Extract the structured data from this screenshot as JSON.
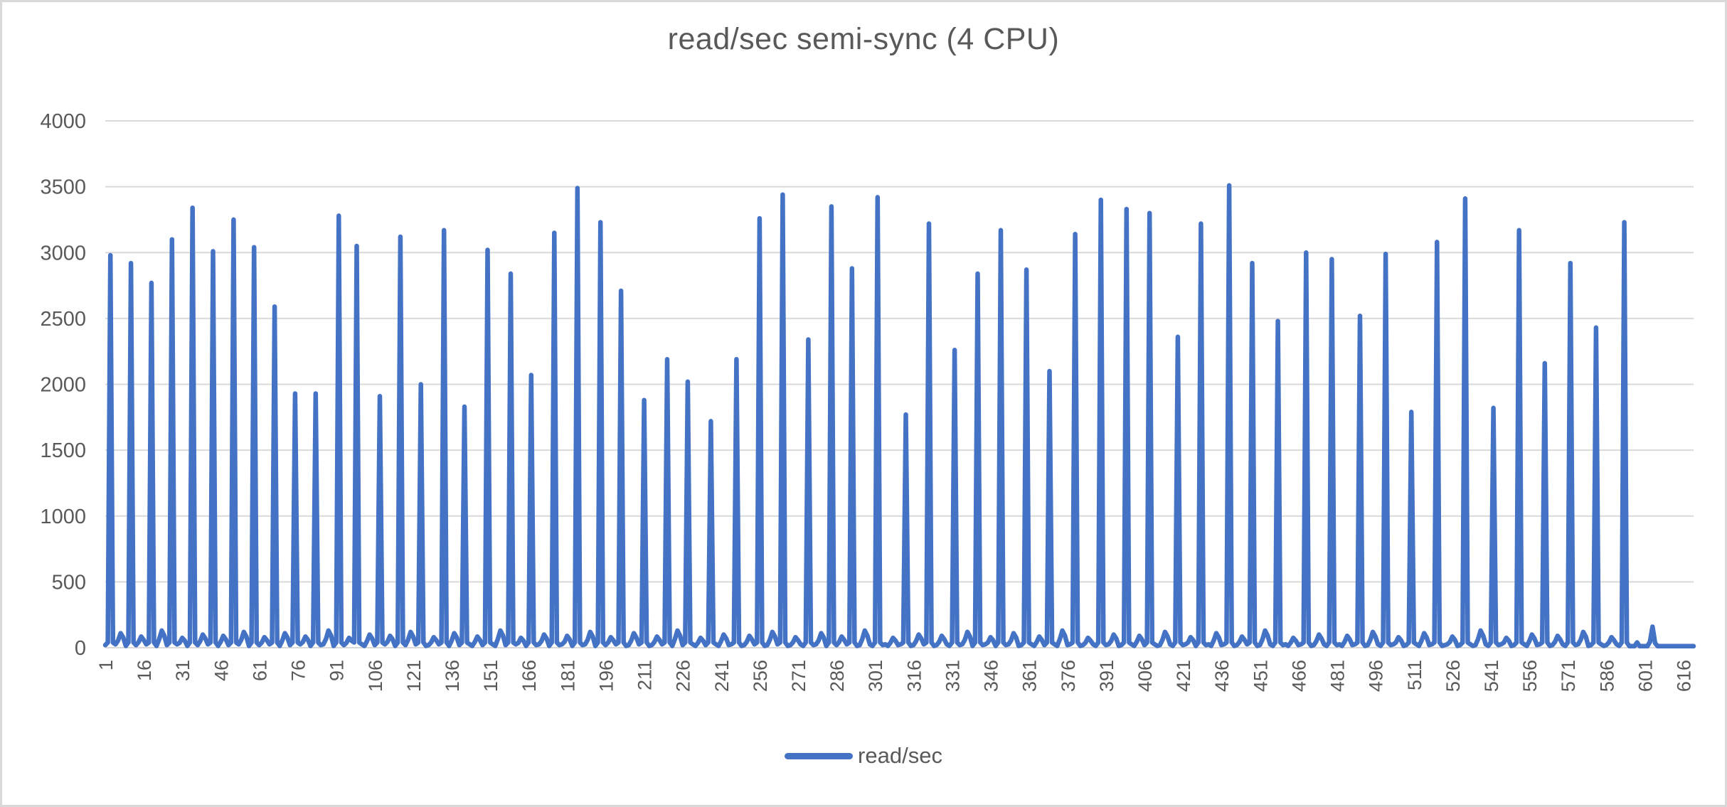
{
  "window": {
    "background": "#ffffff",
    "border_color": "#d9d9d9"
  },
  "chart_data": {
    "type": "line",
    "title": "read/sec semi-sync (4 CPU)",
    "legend": {
      "label": "read/sec",
      "position": "bottom-center"
    },
    "series": [
      {
        "name": "read/sec",
        "color": "#4472C4"
      }
    ],
    "series_color": "#4472C4",
    "grid_color": "#d9d9d9",
    "axis_text_color": "#595959",
    "title_color": "#595959",
    "grid": "horizontal-on",
    "ylim": [
      0,
      4000
    ],
    "ytick_step": 500,
    "yticks": [
      0,
      500,
      1000,
      1500,
      2000,
      2500,
      3000,
      3500,
      4000
    ],
    "xticks": [
      1,
      16,
      31,
      46,
      61,
      76,
      91,
      106,
      121,
      136,
      151,
      166,
      181,
      196,
      211,
      226,
      241,
      256,
      271,
      286,
      301,
      316,
      331,
      346,
      361,
      376,
      391,
      406,
      421,
      436,
      451,
      466,
      481,
      496,
      511,
      526,
      541,
      556,
      571,
      586,
      601,
      616
    ],
    "x_label_rotation_deg": -90,
    "n_points": 620,
    "baseline_value": 18,
    "peak_positions": [
      3,
      11,
      19,
      27,
      35,
      43,
      51,
      59,
      67,
      75,
      83,
      92,
      99,
      108,
      116,
      124,
      133,
      141,
      150,
      159,
      167,
      176,
      185,
      194,
      202,
      211,
      220,
      228,
      237,
      247,
      256,
      265,
      275,
      284,
      292,
      302,
      313,
      322,
      332,
      341,
      350,
      360,
      369,
      379,
      389,
      399,
      408,
      419,
      428,
      439,
      448,
      458,
      469,
      479,
      490,
      500,
      510,
      520,
      531,
      542,
      552,
      562,
      572,
      582,
      593
    ],
    "peak_values": [
      2980,
      2920,
      2770,
      3100,
      3340,
      3010,
      3250,
      3040,
      2590,
      1930,
      1930,
      3280,
      3050,
      1910,
      3120,
      2000,
      3170,
      1830,
      3020,
      2840,
      2070,
      3150,
      3490,
      3230,
      2710,
      1880,
      2190,
      2020,
      1720,
      2190,
      3260,
      3440,
      2340,
      3350,
      2880,
      3420,
      1770,
      3220,
      2260,
      2840,
      3170,
      2870,
      2100,
      3140,
      3400,
      3330,
      3300,
      2360,
      3220,
      3510,
      2920,
      2480,
      3000,
      2950,
      2520,
      2990,
      1790,
      3080,
      3410,
      1820,
      3170,
      2160,
      2920,
      2430,
      3230
    ],
    "valley_bump_values": [
      110,
      85,
      130,
      75,
      100,
      90,
      120,
      80
    ],
    "spike_shoulder_value": 40,
    "tail": {
      "flat_value": 12,
      "pre_bump_position": 598,
      "pre_bump_value": 40,
      "bump_position": 604,
      "bump_value": 160
    }
  }
}
